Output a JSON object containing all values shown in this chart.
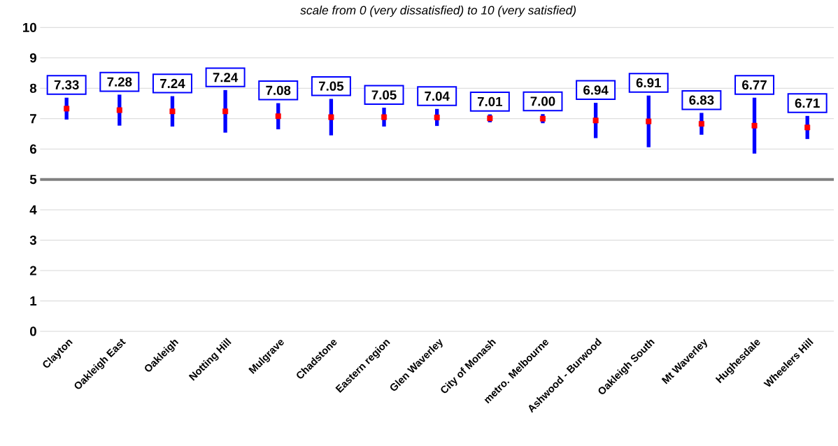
{
  "chart_data": {
    "type": "scatter",
    "subtitle": "scale from 0 (very dissatisfied) to 10 (very satisfied)",
    "categories": [
      "Clayton",
      "Oakleigh East",
      "Oakleigh",
      "Notting Hill",
      "Mulgrave",
      "Chadstone",
      "Eastern region",
      "Glen Waverley",
      "City of Monash",
      "metro. Melbourne",
      "Ashwood - Burwood",
      "Oakleigh South",
      "Mt Waverley",
      "Hughesdale",
      "Wheelers Hill"
    ],
    "series": [
      {
        "color": "#ff0000",
        "values": [
          7.33,
          7.28,
          7.24,
          7.24,
          7.08,
          7.05,
          7.05,
          7.04,
          7.01,
          7.0,
          6.94,
          6.91,
          6.83,
          6.77,
          6.71
        ],
        "errors": [
          0.36,
          0.51,
          0.5,
          0.7,
          0.43,
          0.6,
          0.31,
          0.28,
          0.13,
          0.15,
          0.58,
          0.85,
          0.36,
          0.92,
          0.38
        ],
        "value_labels": [
          "7.33",
          "7.28",
          "7.24",
          "7.24",
          "7.08",
          "7.05",
          "7.05",
          "7.04",
          "7.01",
          "7.00",
          "6.94",
          "6.91",
          "6.83",
          "6.77",
          "6.71"
        ]
      }
    ],
    "ylim": [
      0,
      10
    ],
    "yticks": [
      0,
      1,
      2,
      3,
      4,
      5,
      6,
      7,
      8,
      9,
      10
    ],
    "grid": "y",
    "marker": "square",
    "ref_lines": [
      {
        "axis": "y",
        "value": 5,
        "color": "#808080"
      }
    ]
  }
}
